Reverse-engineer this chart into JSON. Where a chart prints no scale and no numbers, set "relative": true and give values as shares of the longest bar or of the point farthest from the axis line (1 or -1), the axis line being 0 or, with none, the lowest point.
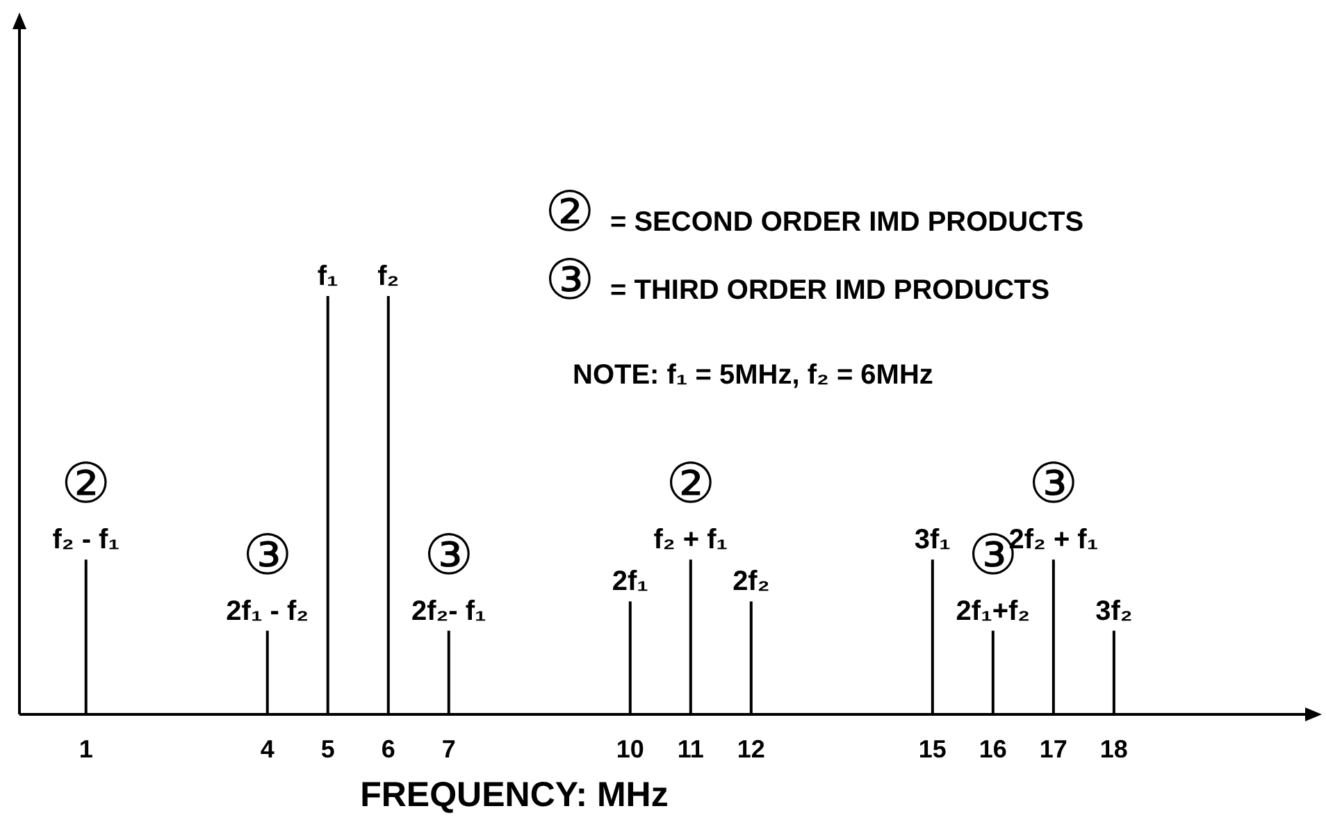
{
  "chart_data": {
    "type": "bar",
    "relative": true,
    "xlabel": "FREQUENCY: MHz",
    "color": "#000000",
    "x": [
      1,
      4,
      5,
      6,
      7,
      10,
      11,
      12,
      15,
      16,
      17,
      18
    ],
    "xlim": [
      -0.1,
      21.3
    ],
    "xticks": [
      1,
      4,
      5,
      6,
      7,
      10,
      11,
      12,
      15,
      16,
      17,
      18
    ],
    "values": [
      0.37,
      0.2,
      1,
      1,
      0.2,
      0.27,
      0.37,
      0.27,
      0.37,
      0.2,
      0.37,
      0.2
    ],
    "annotations": [
      {
        "text": "f₂ - f₁",
        "x": 1,
        "y": 0.37
      },
      {
        "text": "②",
        "x": 1,
        "y": 0.37
      },
      {
        "text": "2f₁ - f₂",
        "x": 4,
        "y": 0.2
      },
      {
        "text": "③",
        "x": 4,
        "y": 0.2
      },
      {
        "text": "f₁",
        "x": 5,
        "y": 1
      },
      {
        "text": "f₂",
        "x": 6,
        "y": 1
      },
      {
        "text": "2f₂- f₁",
        "x": 7,
        "y": 0.2
      },
      {
        "text": "③",
        "x": 7,
        "y": 0.2
      },
      {
        "text": "2f₁",
        "x": 10,
        "y": 0.27
      },
      {
        "text": "f₂ + f₁",
        "x": 11,
        "y": 0.37
      },
      {
        "text": "②",
        "x": 11,
        "y": 0.37
      },
      {
        "text": "2f₂",
        "x": 12,
        "y": 0.27
      },
      {
        "text": "3f₁",
        "x": 15,
        "y": 0.37
      },
      {
        "text": "2f₁+f₂",
        "x": 16,
        "y": 0.2
      },
      {
        "text": "③",
        "x": 16,
        "y": 0.2
      },
      {
        "text": "2f₂ + f₁",
        "x": 17,
        "y": 0.37
      },
      {
        "text": "③",
        "x": 17,
        "y": 0.37
      },
      {
        "text": "3f₂",
        "x": 18,
        "y": 0.2
      },
      "② = SECOND ORDER IMD PRODUCTS",
      "③ = THIRD ORDER IMD PRODUCTS",
      "NOTE: f₁ = 5MHz, f₂ = 6MHz"
    ]
  }
}
